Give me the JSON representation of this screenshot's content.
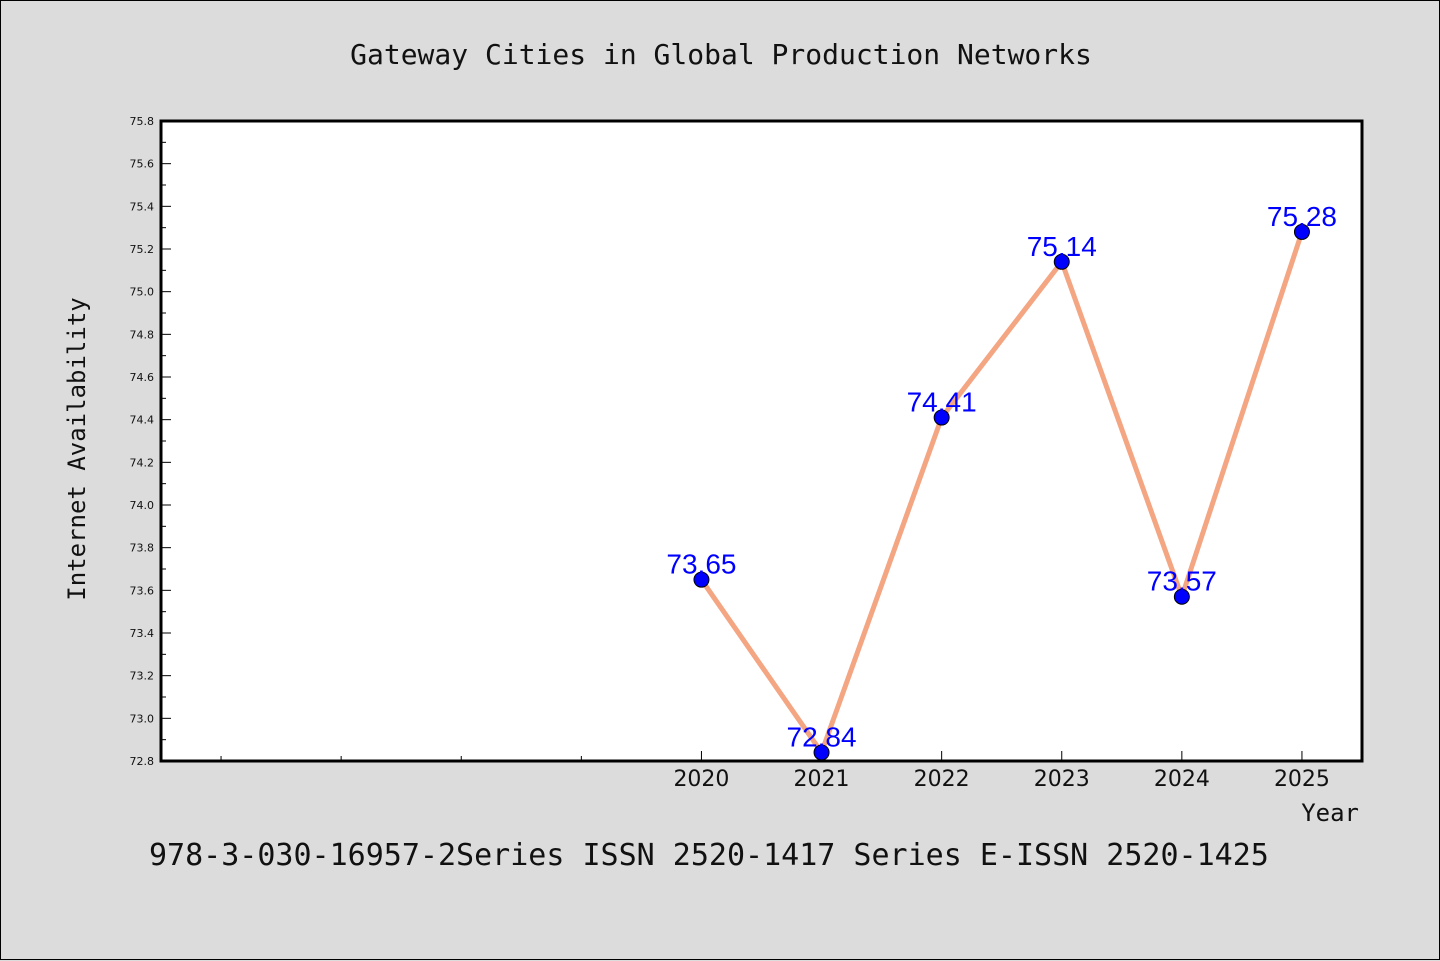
{
  "chart_data": {
    "type": "line",
    "title": "Gateway Cities in Global Production Networks",
    "xlabel": "Year",
    "ylabel": "Internet Availability",
    "x": [
      2020,
      2021,
      2022,
      2023,
      2024,
      2025
    ],
    "series": [
      {
        "values": [
          73.65,
          72.84,
          74.41,
          75.14,
          73.57,
          75.28
        ]
      }
    ],
    "xlim": [
      2015.5,
      2025.5
    ],
    "ylim": [
      72.8,
      75.8
    ],
    "yticks": [
      "72.8",
      "73.0",
      "73.2",
      "73.4",
      "73.6",
      "73.8",
      "74.0",
      "74.2",
      "74.4",
      "74.6",
      "74.8",
      "75.0",
      "75.2",
      "75.4",
      "75.6",
      "75.8"
    ],
    "xticks_labeled": [
      "2020",
      "2021",
      "2022",
      "2023",
      "2024",
      "2025"
    ],
    "x_minor_ticks": [
      2016,
      2017,
      2018,
      2019
    ],
    "grid": false,
    "data_labels": true,
    "colors": {
      "line": "#f4a582",
      "marker": "#0000ff",
      "label": "#0000ff",
      "background": "#dcdcdc",
      "plot_bg": "#ffffff"
    }
  },
  "footer": "978-3-030-16957-2Series ISSN 2520-1417 Series E-ISSN 2520-1425"
}
